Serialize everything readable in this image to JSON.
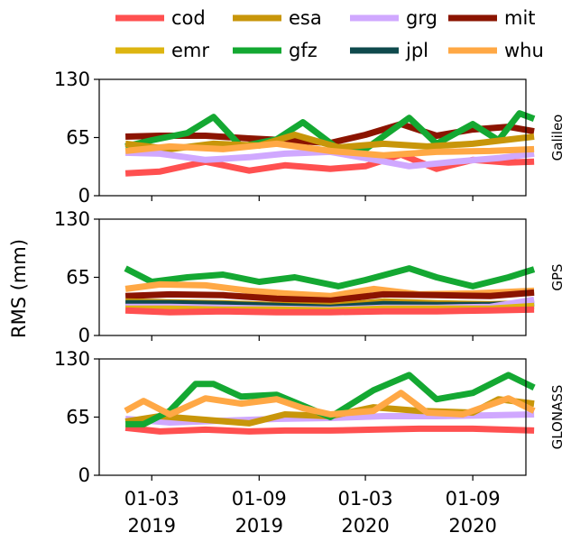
{
  "chart_data": {
    "type": "line",
    "ylabel": "RMS (mm)",
    "x_ticks": [
      "01-03\n2019",
      "01-09\n2019",
      "01-03\n2020",
      "01-09\n2020"
    ],
    "x_range": [
      "2018-12-01",
      "2020-12-01"
    ],
    "legend_placement": "top",
    "legend": [
      {
        "name": "cod",
        "color": "#ff5050"
      },
      {
        "name": "esa",
        "color": "#c8960a"
      },
      {
        "name": "grg",
        "color": "#d0a8ff"
      },
      {
        "name": "mit",
        "color": "#8b1400"
      },
      {
        "name": "emr",
        "color": "#ddb511"
      },
      {
        "name": "gfz",
        "color": "#14a832"
      },
      {
        "name": "jpl",
        "color": "#0f4a4d"
      },
      {
        "name": "whu",
        "color": "#ffa845"
      }
    ],
    "panels": [
      {
        "label": "Galileo",
        "ylim": [
          0,
          130
        ],
        "yticks": [
          0,
          65,
          130
        ],
        "series": [
          {
            "name": "cod",
            "color": "#ff5050",
            "x": [
              "2019-01-15",
              "2019-03-15",
              "2019-06-01",
              "2019-08-15",
              "2019-10-15",
              "2020-01-01",
              "2020-03-01",
              "2020-05-01",
              "2020-07-01",
              "2020-09-01",
              "2020-11-01",
              "2020-12-15"
            ],
            "y": [
              25,
              27,
              38,
              28,
              34,
              30,
              33,
              46,
              30,
              40,
              37,
              38
            ]
          },
          {
            "name": "mit",
            "color": "#8b1400",
            "x": [
              "2019-01-15",
              "2019-03-15",
              "2019-06-01",
              "2019-08-15",
              "2019-10-15",
              "2020-01-01",
              "2020-03-01",
              "2020-05-01",
              "2020-07-01",
              "2020-09-01",
              "2020-11-01",
              "2020-12-15"
            ],
            "y": [
              66,
              67,
              67,
              64,
              62,
              59,
              68,
              80,
              67,
              74,
              77,
              72
            ]
          },
          {
            "name": "gfz",
            "color": "#14a832",
            "x": [
              "2019-01-15",
              "2019-03-01",
              "2019-05-01",
              "2019-06-15",
              "2019-08-01",
              "2019-10-01",
              "2019-11-15",
              "2020-01-15",
              "2020-03-01",
              "2020-05-15",
              "2020-07-01",
              "2020-09-01",
              "2020-10-15",
              "2020-11-20",
              "2020-12-15"
            ],
            "y": [
              55,
              62,
              70,
              88,
              55,
              63,
              82,
              52,
              52,
              87,
              58,
              80,
              62,
              92,
              86
            ]
          },
          {
            "name": "esa",
            "color": "#c8960a",
            "x": [
              "2019-01-15",
              "2019-04-01",
              "2019-06-15",
              "2019-09-01",
              "2019-11-01",
              "2020-01-15",
              "2020-04-01",
              "2020-06-15",
              "2020-09-01",
              "2020-12-15"
            ],
            "y": [
              58,
              52,
              58,
              56,
              68,
              54,
              58,
              55,
              58,
              66
            ]
          },
          {
            "name": "grg",
            "color": "#d0a8ff",
            "x": [
              "2019-01-15",
              "2019-03-15",
              "2019-06-01",
              "2019-08-15",
              "2019-10-15",
              "2020-01-01",
              "2020-03-01",
              "2020-05-15",
              "2020-08-01",
              "2020-10-15",
              "2020-12-15"
            ],
            "y": [
              48,
              47,
              40,
              43,
              47,
              49,
              42,
              33,
              38,
              42,
              47
            ]
          },
          {
            "name": "whu",
            "color": "#ffa845",
            "x": [
              "2019-01-15",
              "2019-04-01",
              "2019-07-01",
              "2019-10-01",
              "2020-01-01",
              "2020-04-01",
              "2020-07-01",
              "2020-10-01",
              "2020-12-15"
            ],
            "y": [
              50,
              55,
              52,
              58,
              50,
              45,
              49,
              50,
              52
            ]
          }
        ]
      },
      {
        "label": "GPS",
        "ylim": [
          0,
          130
        ],
        "yticks": [
          0,
          65,
          130
        ],
        "series": [
          {
            "name": "gfz",
            "color": "#14a832",
            "x": [
              "2019-01-15",
              "2019-03-01",
              "2019-05-01",
              "2019-07-01",
              "2019-09-01",
              "2019-11-01",
              "2020-01-15",
              "2020-03-01",
              "2020-05-15",
              "2020-07-01",
              "2020-09-01",
              "2020-11-01",
              "2020-12-15"
            ],
            "y": [
              75,
              60,
              65,
              68,
              60,
              65,
              55,
              62,
              75,
              65,
              55,
              65,
              74
            ]
          },
          {
            "name": "whu",
            "color": "#ffa845",
            "x": [
              "2019-01-15",
              "2019-03-15",
              "2019-06-01",
              "2019-08-15",
              "2019-10-15",
              "2020-01-01",
              "2020-03-15",
              "2020-06-01",
              "2020-09-01",
              "2020-12-15"
            ],
            "y": [
              52,
              57,
              56,
              50,
              47,
              44,
              52,
              46,
              47,
              50
            ]
          },
          {
            "name": "mit",
            "color": "#8b1400",
            "x": [
              "2019-01-15",
              "2019-04-01",
              "2019-07-01",
              "2019-10-01",
              "2020-01-01",
              "2020-04-01",
              "2020-07-01",
              "2020-10-01",
              "2020-12-15"
            ],
            "y": [
              44,
              46,
              45,
              41,
              39,
              46,
              45,
              44,
              48
            ]
          },
          {
            "name": "esa",
            "color": "#c8960a",
            "x": [
              "2019-01-15",
              "2019-04-01",
              "2019-07-01",
              "2019-10-01",
              "2020-01-01",
              "2020-04-01",
              "2020-07-01",
              "2020-10-01",
              "2020-12-15"
            ],
            "y": [
              38,
              37,
              36,
              34,
              33,
              38,
              36,
              35,
              36
            ]
          },
          {
            "name": "jpl",
            "color": "#0f4a4d",
            "x": [
              "2019-01-15",
              "2019-04-01",
              "2019-07-01",
              "2019-10-01",
              "2020-01-01",
              "2020-04-01",
              "2020-07-01",
              "2020-10-01",
              "2020-12-15"
            ],
            "y": [
              36,
              36,
              35,
              33,
              31,
              35,
              34,
              34,
              36
            ]
          },
          {
            "name": "grg",
            "color": "#d0a8ff",
            "x": [
              "2019-01-15",
              "2019-04-01",
              "2019-07-01",
              "2019-10-01",
              "2020-01-01",
              "2020-04-01",
              "2020-07-01",
              "2020-10-01",
              "2020-12-15"
            ],
            "y": [
              32,
              32,
              31,
              30,
              29,
              31,
              31,
              32,
              40
            ]
          },
          {
            "name": "emr",
            "color": "#ddb511",
            "x": [
              "2019-01-15",
              "2019-04-01",
              "2019-07-01",
              "2019-10-01",
              "2020-01-01",
              "2020-04-01",
              "2020-07-01",
              "2020-10-01",
              "2020-12-15"
            ],
            "y": [
              30,
              30,
              29,
              29,
              28,
              30,
              30,
              30,
              33
            ]
          },
          {
            "name": "cod",
            "color": "#ff5050",
            "x": [
              "2019-01-15",
              "2019-04-01",
              "2019-07-01",
              "2019-10-01",
              "2020-01-01",
              "2020-04-01",
              "2020-07-01",
              "2020-10-01",
              "2020-12-15"
            ],
            "y": [
              28,
              26,
              27,
              26,
              26,
              27,
              27,
              28,
              29
            ]
          }
        ]
      },
      {
        "label": "GLONASS",
        "ylim": [
          0,
          130
        ],
        "yticks": [
          0,
          65,
          130
        ],
        "series": [
          {
            "name": "cod",
            "color": "#ff5050",
            "x": [
              "2019-01-15",
              "2019-03-15",
              "2019-06-01",
              "2019-08-15",
              "2019-10-15",
              "2020-01-01",
              "2020-03-15",
              "2020-06-01",
              "2020-09-01",
              "2020-12-15"
            ],
            "y": [
              53,
              49,
              51,
              49,
              50,
              50,
              51,
              52,
              52,
              50
            ]
          },
          {
            "name": "grg",
            "color": "#d0a8ff",
            "x": [
              "2019-01-15",
              "2019-04-01",
              "2019-07-01",
              "2019-10-01",
              "2020-01-01",
              "2020-04-01",
              "2020-07-01",
              "2020-10-01",
              "2020-12-15"
            ],
            "y": [
              63,
              59,
              61,
              63,
              64,
              66,
              66,
              67,
              68
            ]
          },
          {
            "name": "esa",
            "color": "#c8960a",
            "x": [
              "2019-01-15",
              "2019-03-15",
              "2019-06-01",
              "2019-08-15",
              "2019-10-15",
              "2020-01-01",
              "2020-03-15",
              "2020-06-01",
              "2020-09-01",
              "2020-10-15",
              "2020-12-15"
            ],
            "y": [
              60,
              66,
              62,
              58,
              68,
              66,
              76,
              72,
              70,
              85,
              80
            ]
          },
          {
            "name": "gfz",
            "color": "#14a832",
            "x": [
              "2019-01-15",
              "2019-02-15",
              "2019-04-01",
              "2019-05-15",
              "2019-06-15",
              "2019-08-01",
              "2019-10-01",
              "2020-01-01",
              "2020-03-15",
              "2020-05-15",
              "2020-07-01",
              "2020-09-01",
              "2020-11-01",
              "2020-12-15"
            ],
            "y": [
              57,
              57,
              72,
              102,
              102,
              88,
              90,
              65,
              95,
              112,
              85,
              92,
              112,
              98
            ]
          },
          {
            "name": "whu",
            "color": "#ffa845",
            "x": [
              "2019-01-15",
              "2019-02-15",
              "2019-04-01",
              "2019-06-01",
              "2019-08-01",
              "2019-10-01",
              "2019-11-15",
              "2020-01-01",
              "2020-03-15",
              "2020-05-01",
              "2020-06-15",
              "2020-08-15",
              "2020-11-01",
              "2020-12-15"
            ],
            "y": [
              72,
              83,
              68,
              86,
              80,
              85,
              75,
              68,
              72,
              92,
              70,
              68,
              86,
              72
            ]
          }
        ]
      }
    ]
  }
}
